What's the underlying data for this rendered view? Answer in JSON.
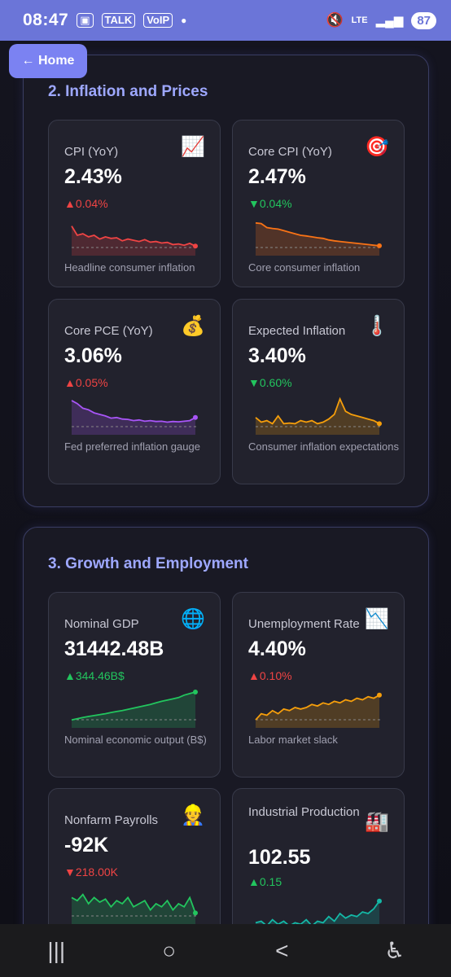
{
  "status_bar": {
    "time": "08:47",
    "icons": [
      "screenshot-icon",
      "talk-icon",
      "voip-icon"
    ],
    "network": "LTE",
    "battery": "87"
  },
  "home_button": {
    "label": "← Home"
  },
  "sections": [
    {
      "title": "2. Inflation and Prices",
      "cards": [
        {
          "label": "CPI (YoY)",
          "icon": "📈",
          "icon_name": "chart-increasing-icon",
          "value": "2.43%",
          "delta": "▲0.04%",
          "delta_color": "#ef4444",
          "line_color": "#ef4444",
          "desc": "Headline consumer inflation",
          "series": [
            0.2,
            0.5,
            0.45,
            0.55,
            0.5,
            0.62,
            0.55,
            0.6,
            0.58,
            0.68,
            0.62,
            0.66,
            0.7,
            0.64,
            0.72,
            0.7,
            0.75,
            0.73,
            0.8,
            0.78,
            0.82,
            0.76,
            0.85
          ]
        },
        {
          "label": "Core CPI (YoY)",
          "icon": "🎯",
          "icon_name": "target-icon",
          "value": "2.47%",
          "delta": "▼0.04%",
          "delta_color": "#22c55e",
          "line_color": "#f97316",
          "desc": "Core consumer inflation",
          "series": [
            0.1,
            0.12,
            0.25,
            0.28,
            0.3,
            0.35,
            0.4,
            0.45,
            0.5,
            0.52,
            0.55,
            0.58,
            0.6,
            0.65,
            0.68,
            0.7,
            0.72,
            0.74,
            0.76,
            0.78,
            0.8,
            0.82,
            0.84
          ]
        },
        {
          "label": "Core PCE (YoY)",
          "icon": "💰",
          "icon_name": "money-bag-icon",
          "value": "3.06%",
          "delta": "▲0.05%",
          "delta_color": "#ef4444",
          "line_color": "#a855f7",
          "desc": "Fed preferred inflation gauge",
          "series": [
            0.05,
            0.15,
            0.3,
            0.35,
            0.45,
            0.5,
            0.55,
            0.62,
            0.6,
            0.65,
            0.66,
            0.7,
            0.68,
            0.72,
            0.7,
            0.73,
            0.72,
            0.75,
            0.73,
            0.74,
            0.72,
            0.7,
            0.6
          ]
        },
        {
          "label": "Expected Inflation",
          "icon": "🌡️",
          "icon_name": "thermometer-icon",
          "value": "3.40%",
          "delta": "▼0.60%",
          "delta_color": "#22c55e",
          "line_color": "#f59e0b",
          "desc": "Consumer inflation expectations",
          "series": [
            0.6,
            0.75,
            0.7,
            0.8,
            0.55,
            0.8,
            0.78,
            0.8,
            0.7,
            0.75,
            0.7,
            0.8,
            0.75,
            0.65,
            0.5,
            0.0,
            0.4,
            0.5,
            0.55,
            0.6,
            0.65,
            0.7,
            0.8
          ]
        }
      ]
    },
    {
      "title": "3. Growth and Employment",
      "cards": [
        {
          "label": "Nominal GDP",
          "icon": "🌐",
          "icon_name": "globe-icon",
          "value": "31442.48B",
          "delta": "▲344.46B$",
          "delta_color": "#22c55e",
          "line_color": "#22c55e",
          "desc": "Nominal economic output (B$)",
          "series": [
            0.9,
            0.86,
            0.82,
            0.79,
            0.76,
            0.73,
            0.7,
            0.66,
            0.63,
            0.6,
            0.56,
            0.52,
            0.48,
            0.44,
            0.4,
            0.35,
            0.3,
            0.26,
            0.22,
            0.18,
            0.1,
            0.05,
            0.0
          ]
        },
        {
          "label": "Unemployment Rate",
          "icon": "📉",
          "icon_name": "chart-decreasing-icon",
          "value": "4.40%",
          "delta": "▲0.10%",
          "delta_color": "#ef4444",
          "line_color": "#f59e0b",
          "desc": "Labor market slack",
          "series": [
            0.9,
            0.7,
            0.75,
            0.6,
            0.7,
            0.55,
            0.6,
            0.5,
            0.55,
            0.5,
            0.4,
            0.45,
            0.35,
            0.4,
            0.3,
            0.35,
            0.25,
            0.3,
            0.2,
            0.25,
            0.15,
            0.2,
            0.1
          ]
        },
        {
          "label": "Nonfarm Payrolls",
          "icon": "👷",
          "icon_name": "construction-worker-icon",
          "value": "-92K",
          "delta": "▼218.00K",
          "delta_color": "#ef4444",
          "line_color": "#22c55e",
          "desc": "",
          "series": [
            0.3,
            0.4,
            0.2,
            0.5,
            0.3,
            0.45,
            0.35,
            0.6,
            0.4,
            0.5,
            0.3,
            0.6,
            0.5,
            0.4,
            0.7,
            0.5,
            0.6,
            0.4,
            0.7,
            0.5,
            0.6,
            0.3,
            0.8
          ]
        },
        {
          "label": "Industrial Production",
          "icon": "🏭",
          "icon_name": "factory-icon",
          "value": "102.55",
          "delta": "▲0.15",
          "delta_color": "#22c55e",
          "line_color": "#14b8a6",
          "desc": "",
          "series": [
            0.8,
            0.75,
            0.9,
            0.7,
            0.85,
            0.75,
            0.9,
            0.8,
            0.85,
            0.7,
            0.9,
            0.75,
            0.8,
            0.6,
            0.75,
            0.5,
            0.65,
            0.55,
            0.6,
            0.45,
            0.5,
            0.35,
            0.1
          ]
        }
      ]
    }
  ],
  "nav": {
    "recent": "|||",
    "home": "○",
    "back": "<",
    "accessibility": "♿"
  }
}
